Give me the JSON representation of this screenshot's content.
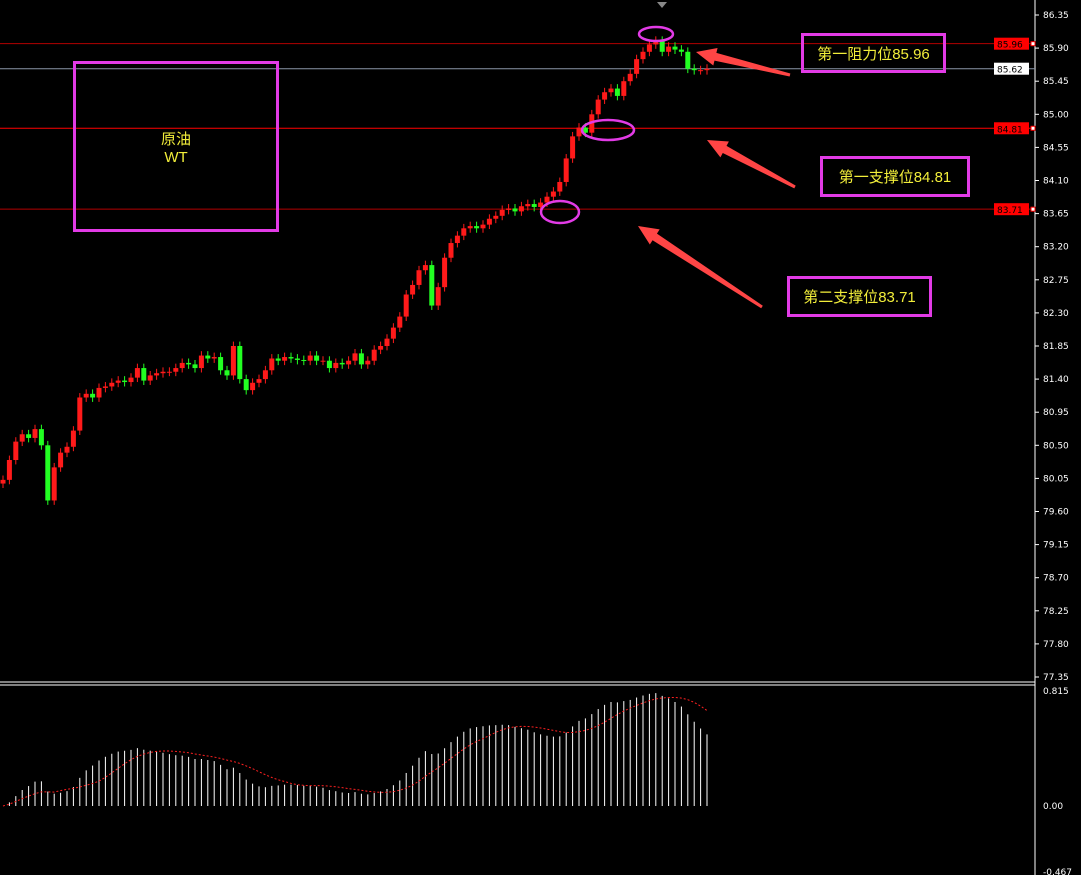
{
  "chart_data": [
    {
      "type": "candlestick",
      "ylim": [
        77.35,
        86.35
      ],
      "y_ticks": [
        "86.35",
        "85.90",
        "85.45",
        "85.00",
        "84.55",
        "84.10",
        "83.65",
        "83.20",
        "82.75",
        "82.30",
        "81.85",
        "81.40",
        "80.95",
        "80.50",
        "80.05",
        "79.60",
        "79.15",
        "78.70",
        "78.25",
        "77.80",
        "77.35"
      ],
      "closes": [
        80.03,
        80.3,
        80.55,
        80.65,
        80.6,
        80.72,
        80.5,
        79.75,
        80.2,
        80.4,
        80.48,
        80.7,
        81.15,
        81.2,
        81.15,
        81.28,
        81.3,
        81.35,
        81.38,
        81.36,
        81.42,
        81.55,
        81.38,
        81.45,
        81.48,
        81.5,
        81.5,
        81.55,
        81.62,
        81.6,
        81.55,
        81.72,
        81.68,
        81.7,
        81.52,
        81.45,
        81.85,
        81.4,
        81.25,
        81.35,
        81.4,
        81.52,
        81.68,
        81.65,
        81.7,
        81.68,
        81.66,
        81.65,
        81.72,
        81.65,
        81.65,
        81.55,
        81.62,
        81.6,
        81.65,
        81.75,
        81.6,
        81.65,
        81.8,
        81.85,
        81.95,
        82.1,
        82.25,
        82.55,
        82.68,
        82.88,
        82.95,
        82.4,
        82.65,
        83.05,
        83.25,
        83.35,
        83.45,
        83.48,
        83.45,
        83.5,
        83.58,
        83.62,
        83.7,
        83.72,
        83.68,
        83.75,
        83.78,
        83.74,
        83.8,
        83.88,
        83.95,
        84.08,
        84.4,
        84.7,
        84.82,
        84.75,
        85.0,
        85.2,
        85.3,
        85.35,
        85.25,
        85.45,
        85.55,
        85.75,
        85.85,
        85.95,
        86.0,
        85.85,
        85.92,
        85.88,
        85.85,
        85.62,
        85.6,
        85.6,
        85.62
      ],
      "up_color": "#ff1a1a",
      "down_color": "#22ff22",
      "levels": [
        {
          "label": "85.96",
          "value": 85.96,
          "color": "#ff0000"
        },
        {
          "label": "85.62",
          "value": 85.62,
          "color": "#8a95a8",
          "current": true
        },
        {
          "label": "84.81",
          "value": 84.81,
          "color": "#ff0000"
        },
        {
          "label": "83.71",
          "value": 83.71,
          "color": "#ff0000"
        }
      ]
    },
    {
      "type": "macd-histogram",
      "y_ticks": [
        "0.815",
        "0.00",
        "-0.467"
      ],
      "ylim": [
        -0.467,
        0.815
      ],
      "bar_color": "#ffffff",
      "signal_color": "#ff2020"
    }
  ],
  "annotations": {
    "instrument_line1": "原油",
    "instrument_line2": "WT",
    "resistance1": "第一阻力位85.96",
    "support1": "第一支撑位84.81",
    "support2": "第二支撑位83.71",
    "accent": "#e23be6",
    "arrow_color": "#ff4545"
  }
}
